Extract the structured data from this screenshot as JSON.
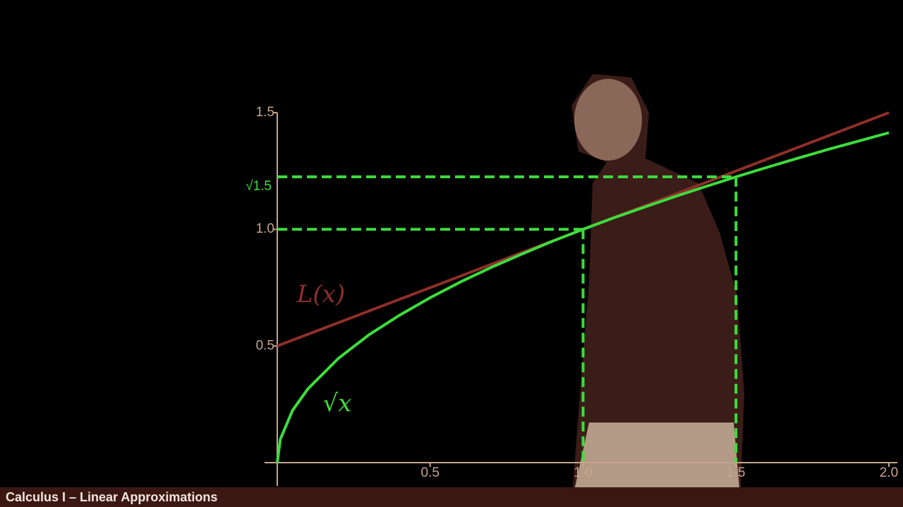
{
  "chart_data": {
    "type": "line",
    "x": [
      0,
      0.01,
      0.05,
      0.1,
      0.2,
      0.3,
      0.4,
      0.5,
      0.6,
      0.7,
      0.8,
      0.9,
      1,
      1.1,
      1.2,
      1.3,
      1.4,
      1.5,
      1.6,
      1.7,
      1.8,
      1.9,
      2
    ],
    "series": [
      {
        "name": "L(x)",
        "color": "#8e2f2a",
        "values": [
          0.5,
          0.505,
          0.525,
          0.55,
          0.6,
          0.65,
          0.7,
          0.75,
          0.8,
          0.85,
          0.9,
          0.95,
          1,
          1.05,
          1.1,
          1.15,
          1.2,
          1.25,
          1.3,
          1.35,
          1.4,
          1.45,
          1.5
        ]
      },
      {
        "name": "√x",
        "color": "#3ddc3d",
        "values": [
          0,
          0.1,
          0.224,
          0.316,
          0.447,
          0.548,
          0.632,
          0.707,
          0.775,
          0.837,
          0.894,
          0.949,
          1,
          1.049,
          1.095,
          1.14,
          1.183,
          1.225,
          1.265,
          1.304,
          1.342,
          1.378,
          1.414
        ]
      }
    ],
    "guides": [
      {
        "x": 1,
        "y": 1
      },
      {
        "x": 1.5,
        "y": 1.225,
        "label": "√1.5"
      }
    ],
    "guide_color": "#3ddc3d",
    "xlim": [
      0,
      2
    ],
    "ylim": [
      0,
      1.5
    ],
    "xticks": [
      0.5,
      {
        "value": 1,
        "label": "1.0"
      },
      1.5,
      {
        "value": 2,
        "label": "2.0"
      }
    ],
    "yticks": [
      0.5,
      {
        "value": 1,
        "label": "1.0"
      },
      1.5
    ],
    "axis_color": "#c8a48e"
  },
  "footer": {
    "title": "Calculus I – Linear Approximations"
  }
}
